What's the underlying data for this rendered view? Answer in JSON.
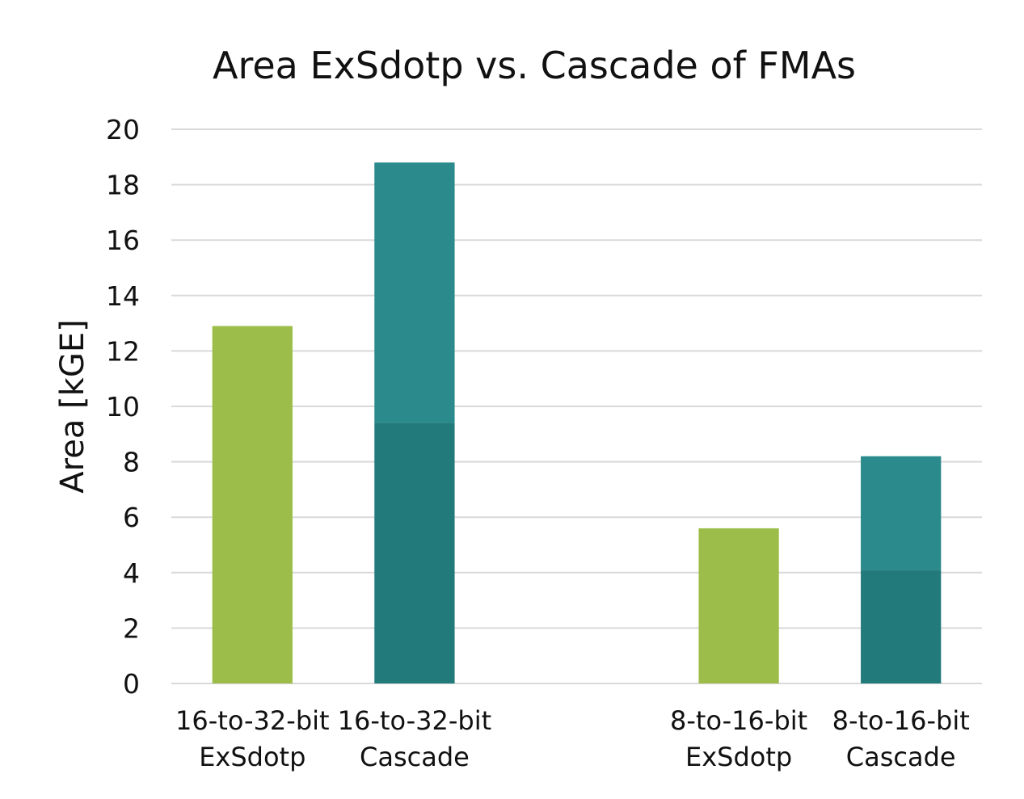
{
  "chart_data": {
    "type": "bar",
    "stacked": true,
    "title": "Area ExSdotp vs. Cascade of FMAs",
    "xlabel": "",
    "ylabel": "Area [kGE]",
    "ylim": [
      0,
      20
    ],
    "yticks": [
      0,
      2,
      4,
      6,
      8,
      10,
      12,
      14,
      16,
      18,
      20
    ],
    "grid": true,
    "categories": [
      [
        "16-to-32-bit",
        "ExSdotp"
      ],
      [
        "16-to-32-bit",
        "Cascade"
      ],
      [
        "",
        ""
      ],
      [
        "8-to-16-bit",
        "ExSdotp"
      ],
      [
        "8-to-16-bit",
        "Cascade"
      ]
    ],
    "bars": [
      {
        "category": 0,
        "segments": [
          {
            "value": 12.9,
            "color": "#9dbd4b"
          }
        ]
      },
      {
        "category": 1,
        "segments": [
          {
            "value": 9.4,
            "color": "#237a7b"
          },
          {
            "value": 9.4,
            "color": "#2b8a8b"
          }
        ]
      },
      {
        "category": 3,
        "segments": [
          {
            "value": 5.6,
            "color": "#9dbd4b"
          }
        ]
      },
      {
        "category": 4,
        "segments": [
          {
            "value": 4.1,
            "color": "#237a7b"
          },
          {
            "value": 4.1,
            "color": "#2b8a8b"
          }
        ]
      }
    ],
    "colors": {
      "exsdotp": "#9dbd4b",
      "cascade_lower": "#237a7b",
      "cascade_upper": "#2b8a8b",
      "grid": "#d9d9d9",
      "text": "#111111"
    }
  }
}
